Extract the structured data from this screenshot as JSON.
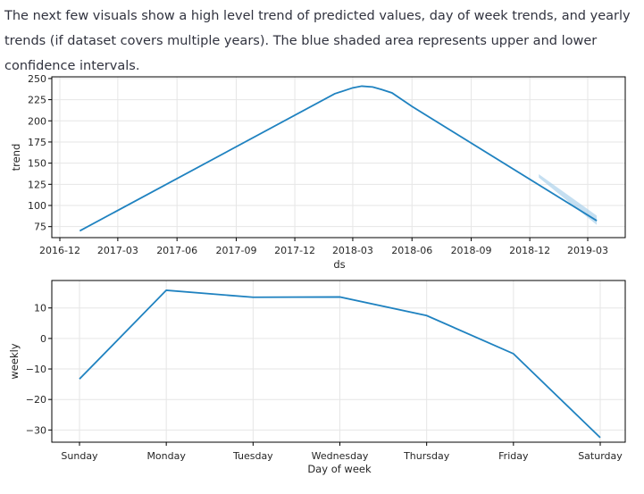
{
  "intro_text": "The next few visuals show a high level trend of predicted values, day of week trends, and yearly trends (if dataset covers multiple years). The blue shaded area represents upper and lower confidence intervals.",
  "colors": {
    "line": "#1f82c0",
    "band": "#9ec9e8",
    "grid": "#e6e6e6",
    "axis": "#000000"
  },
  "chart_data": [
    {
      "type": "line",
      "xlabel": "ds",
      "ylabel": "trend",
      "ylim": [
        62,
        252
      ],
      "yticks": [
        75,
        100,
        125,
        150,
        175,
        200,
        225,
        250
      ],
      "xticks": [
        "2016-12",
        "2017-03",
        "2017-06",
        "2017-09",
        "2017-12",
        "2018-03",
        "2018-06",
        "2018-09",
        "2018-12",
        "2019-03"
      ],
      "grid": true,
      "x": [
        "2017-01-01",
        "2018-02-01",
        "2018-03-01",
        "2018-03-15",
        "2018-04-01",
        "2018-04-15",
        "2018-05-01",
        "2018-06-01",
        "2019-03-15"
      ],
      "series": [
        {
          "values": [
            70,
            232,
            239,
            241,
            240,
            237,
            233,
            217,
            82
          ]
        }
      ],
      "confidence_band": {
        "x": [
          "2018-12-15",
          "2019-03-15"
        ],
        "lower": [
          133,
          77
        ],
        "upper": [
          137,
          88
        ]
      }
    },
    {
      "type": "line",
      "xlabel": "Day of week",
      "ylabel": "weekly",
      "ylim": [
        -34,
        19
      ],
      "yticks": [
        -30,
        -20,
        -10,
        0,
        10
      ],
      "categories": [
        "Sunday",
        "Monday",
        "Tuesday",
        "Wednesday",
        "Thursday",
        "Friday",
        "Saturday"
      ],
      "grid": true,
      "series": [
        {
          "values": [
            -13.3,
            15.8,
            13.5,
            13.6,
            7.5,
            -5.0,
            -32.5
          ]
        }
      ]
    }
  ]
}
